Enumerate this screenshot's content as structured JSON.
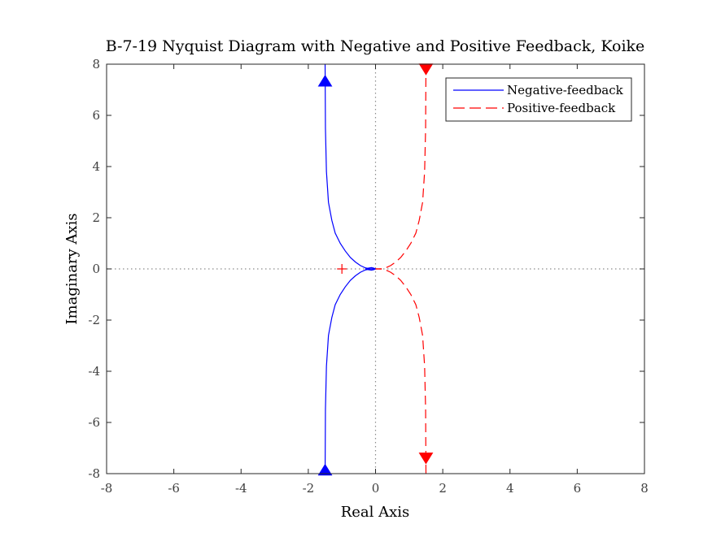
{
  "chart_data": {
    "type": "line",
    "title": "B-7-19 Nyquist Diagram with Negative and Positive Feedback, Koike",
    "xlabel": "Real Axis",
    "ylabel": "Imaginary Axis",
    "xlim": [
      -8,
      8
    ],
    "ylim": [
      -8,
      8
    ],
    "xticks": [
      "-8",
      "-6",
      "-4",
      "-2",
      "0",
      "2",
      "4",
      "6",
      "8"
    ],
    "yticks": [
      "-8",
      "-6",
      "-4",
      "-2",
      "0",
      "2",
      "4",
      "6",
      "8"
    ],
    "grid": false,
    "zero_lines": "dotted",
    "legend_position": "top-right",
    "critical_point": {
      "x": -1,
      "y": 0,
      "marker": "+",
      "color": "#ff0000"
    },
    "series": [
      {
        "name": "Negative-feedback",
        "color": "#0000ff",
        "style": "solid",
        "arrow": "up",
        "branches": [
          {
            "x": [
              -1.5,
              -1.49,
              -1.46,
              -1.4,
              -1.3,
              -1.2,
              -1.05,
              -0.9,
              -0.75,
              -0.6,
              -0.45,
              -0.3,
              -0.15,
              0.0
            ],
            "y": [
              8,
              5.5,
              3.8,
              2.6,
              1.9,
              1.4,
              1.0,
              0.7,
              0.45,
              0.27,
              0.13,
              0.04,
              0.0,
              0.0
            ]
          },
          {
            "x": [
              -1.5,
              -1.49,
              -1.46,
              -1.4,
              -1.3,
              -1.2,
              -1.05,
              -0.9,
              -0.75,
              -0.6,
              -0.45,
              -0.3,
              -0.15,
              0.0
            ],
            "y": [
              -8,
              -5.5,
              -3.8,
              -2.6,
              -1.9,
              -1.4,
              -1.0,
              -0.7,
              -0.45,
              -0.27,
              -0.13,
              -0.04,
              0.0,
              0.0
            ]
          },
          {
            "x": [
              -0.3,
              -0.22,
              -0.12,
              -0.05,
              0.0,
              -0.05,
              -0.12,
              -0.22,
              -0.3
            ],
            "y": [
              0.0,
              0.03,
              0.05,
              0.03,
              0.0,
              -0.03,
              -0.05,
              -0.03,
              0.0
            ]
          }
        ],
        "arrows": [
          {
            "x": -1.5,
            "y": 7.35,
            "dir": "up"
          },
          {
            "x": -1.5,
            "y": -7.85,
            "dir": "up"
          }
        ]
      },
      {
        "name": "Positive-feedback",
        "color": "#ff0000",
        "style": "dashed",
        "arrow": "down",
        "branches": [
          {
            "x": [
              1.5,
              1.49,
              1.46,
              1.4,
              1.3,
              1.2,
              1.05,
              0.9,
              0.75,
              0.6,
              0.45,
              0.3,
              0.15,
              0.0
            ],
            "y": [
              8,
              5.5,
              3.8,
              2.6,
              1.9,
              1.4,
              1.0,
              0.7,
              0.45,
              0.27,
              0.13,
              0.04,
              0.0,
              0.0
            ]
          },
          {
            "x": [
              1.5,
              1.49,
              1.46,
              1.4,
              1.3,
              1.2,
              1.05,
              0.9,
              0.75,
              0.6,
              0.45,
              0.3,
              0.15,
              0.0
            ],
            "y": [
              -8,
              -5.5,
              -3.8,
              -2.6,
              -1.9,
              -1.4,
              -1.0,
              -0.7,
              -0.45,
              -0.27,
              -0.13,
              -0.04,
              0.0,
              0.0
            ]
          }
        ],
        "arrows": [
          {
            "x": 1.5,
            "y": 7.8,
            "dir": "down"
          },
          {
            "x": 1.5,
            "y": -7.4,
            "dir": "down"
          }
        ]
      }
    ]
  }
}
